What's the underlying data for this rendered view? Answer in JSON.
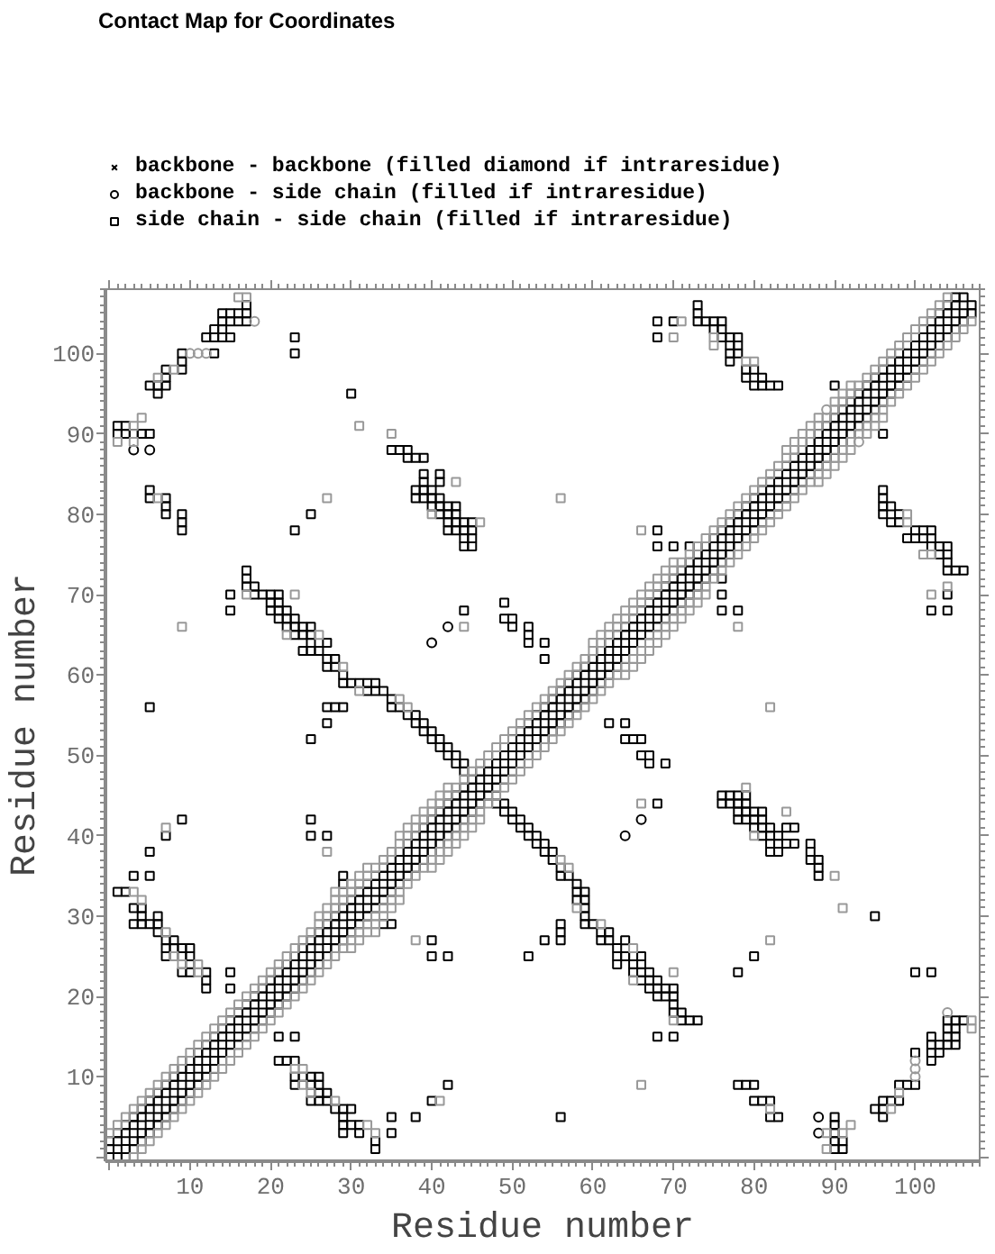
{
  "chart_data": {
    "type": "scatter",
    "title": "Contact Map for Coordinates",
    "xlabel": "Residue number",
    "ylabel": "Residue number",
    "xlim": [
      -0.5,
      108
    ],
    "ylim": [
      -0.5,
      108
    ],
    "xticks": [
      {
        "value": 0,
        "label": null
      },
      10,
      20,
      30,
      40,
      50,
      60,
      70,
      80,
      90,
      100
    ],
    "yticks": [
      {
        "value": 0,
        "label": null
      },
      10,
      20,
      30,
      40,
      50,
      60,
      70,
      80,
      90,
      100
    ],
    "legend": "top",
    "series": [
      {
        "name": "backbone - backbone (filled diamond if intraresidue)",
        "color": "#000000",
        "marker": "cross"
      },
      {
        "name": "backbone - side chain (filled if intraresidue)",
        "color": "#000000",
        "marker": "circle",
        "x": [
          3,
          5,
          42,
          40,
          88,
          88,
          66,
          64
        ],
        "values": [
          88,
          88,
          66,
          64,
          3,
          5,
          42,
          40
        ]
      },
      {
        "name": "side chain - side chain (filled if intraresidue)",
        "color": "#000000",
        "marker": "square",
        "x": [
          0,
          1,
          2,
          3,
          4,
          5,
          6,
          7,
          8,
          9,
          10,
          11,
          12,
          13,
          14,
          15,
          16,
          17,
          18,
          19,
          20,
          21,
          22,
          23,
          24,
          25,
          26,
          27,
          28,
          29,
          30,
          31,
          32,
          33,
          34,
          35,
          36,
          37,
          38,
          39,
          40,
          41,
          42,
          43,
          44,
          45,
          46,
          47,
          48,
          49,
          50,
          51,
          52,
          53,
          54,
          55,
          56,
          57,
          58,
          59,
          60,
          61,
          62,
          63,
          64,
          65,
          66,
          67,
          68,
          69,
          70,
          71,
          72,
          73,
          74,
          75,
          76,
          77,
          78,
          79,
          80,
          81,
          82,
          83,
          84,
          85,
          86,
          87,
          88,
          89,
          90,
          91,
          92,
          93,
          94,
          95,
          96,
          97,
          98,
          99,
          100,
          101,
          102,
          103,
          104,
          105,
          106,
          1,
          2,
          3,
          4,
          5,
          6,
          7,
          8,
          9,
          10,
          11,
          12,
          13,
          14,
          15,
          16,
          17,
          18,
          19,
          20,
          21,
          22,
          23,
          24,
          25,
          26,
          27,
          28,
          29,
          30,
          31,
          32,
          33,
          34,
          35,
          36,
          37,
          38,
          39,
          40,
          41,
          42,
          43,
          44,
          45,
          46,
          47,
          48,
          49,
          50,
          51,
          52,
          53,
          54,
          55,
          56,
          57,
          58,
          59,
          60,
          61,
          62,
          63,
          64,
          65,
          66,
          67,
          68,
          69,
          70,
          71,
          72,
          73,
          74,
          75,
          76,
          77,
          78,
          79,
          80,
          81,
          82,
          83,
          84,
          85,
          86,
          87,
          88,
          89,
          90,
          91,
          92,
          93,
          94,
          95,
          96,
          97,
          98,
          99,
          100,
          101,
          102,
          103,
          104,
          105,
          106,
          107,
          0,
          1,
          2,
          3,
          4,
          5,
          6,
          7,
          8,
          9,
          10,
          11,
          12,
          13,
          14,
          15,
          16,
          17,
          18,
          19,
          20,
          21,
          22,
          23,
          24,
          25,
          26,
          27,
          28,
          29,
          30,
          31,
          32,
          33,
          34,
          35,
          36,
          37,
          38,
          39,
          40,
          41,
          42,
          43,
          44,
          45,
          46,
          47,
          48,
          49,
          50,
          51,
          52,
          53,
          54,
          55,
          56,
          57,
          58,
          59,
          60,
          61,
          62,
          63,
          64,
          65,
          66,
          67,
          68,
          69,
          70,
          71,
          72,
          73,
          74,
          75,
          76,
          77,
          78,
          79,
          80,
          81,
          82,
          83,
          84,
          85,
          86,
          87,
          88,
          89,
          90,
          91,
          92,
          93,
          94,
          95,
          96,
          97,
          98,
          99,
          100,
          101,
          102,
          103,
          104,
          105,
          2,
          3,
          4,
          5,
          6,
          7,
          8,
          9,
          10,
          11,
          12,
          13,
          14,
          15,
          16,
          17,
          18,
          19,
          20,
          21,
          22,
          23,
          24,
          25,
          26,
          27,
          28,
          29,
          30,
          31,
          32,
          33,
          34,
          35,
          36,
          37,
          38,
          39,
          40,
          41,
          42,
          43,
          44,
          45,
          46,
          47,
          48,
          49,
          50,
          51,
          52,
          53,
          54,
          55,
          56,
          57,
          58,
          59,
          60,
          61,
          62,
          63,
          64,
          65,
          66,
          67,
          68,
          69,
          70,
          71,
          72,
          73,
          74,
          75,
          76,
          77,
          78,
          79,
          80,
          81,
          82,
          83,
          84,
          85,
          86,
          87,
          88,
          89,
          90,
          91,
          92,
          93,
          94,
          95,
          96,
          97,
          98,
          99,
          100,
          101,
          102,
          103,
          104,
          105,
          106,
          107,
          1,
          2,
          3,
          5,
          3,
          4,
          4,
          6,
          3,
          4,
          5,
          6,
          6,
          7,
          8,
          7,
          8,
          9,
          10,
          7,
          9,
          10,
          10,
          9,
          10,
          12,
          12,
          12,
          15,
          15,
          5,
          7,
          9,
          25,
          25,
          27,
          25,
          27,
          27,
          28,
          29,
          29,
          29,
          5,
          15,
          15,
          17,
          17,
          17,
          18,
          18,
          19,
          20,
          21,
          20,
          21,
          20,
          21,
          22,
          21,
          22,
          23,
          22,
          23,
          24,
          25,
          23,
          24,
          25,
          25,
          27,
          24,
          25,
          26,
          27,
          28,
          27,
          28,
          29,
          29,
          30,
          31,
          32,
          33,
          32,
          33,
          34,
          35,
          35,
          36,
          37,
          38,
          38,
          39,
          39,
          40,
          40,
          41,
          41,
          42,
          42,
          43,
          43,
          44,
          44,
          35,
          36,
          37,
          37,
          38,
          39,
          39,
          39,
          41,
          41,
          38,
          39,
          40,
          38,
          39,
          40,
          41,
          40,
          41,
          42,
          43,
          41,
          42,
          43,
          42,
          43,
          44,
          45,
          42,
          43,
          44,
          45,
          44,
          45,
          44,
          45,
          1,
          2,
          1,
          2,
          3,
          4,
          5,
          5,
          5,
          7,
          7,
          7,
          9,
          9,
          9,
          6,
          5,
          6,
          7,
          7,
          7,
          9,
          9,
          9,
          13,
          12,
          13,
          14,
          15,
          13,
          14,
          14,
          15,
          16,
          17,
          14,
          15,
          16,
          17,
          17,
          23,
          23,
          30,
          25,
          23,
          73,
          73,
          73,
          74,
          75,
          76,
          75,
          76,
          76,
          77,
          78,
          77,
          78,
          77,
          78,
          77,
          79,
          80,
          79,
          81,
          80,
          81,
          82,
          83,
          68,
          70,
          68,
          68,
          68,
          70,
          72,
          90,
          52,
          52,
          52,
          54,
          54,
          49,
          50,
          49,
          50,
          44,
          33,
          33,
          35,
          35,
          31,
          31,
          30,
          30,
          29,
          29,
          29,
          29,
          28,
          27,
          27,
          26,
          26,
          26,
          26,
          25,
          25,
          25,
          24,
          23,
          23,
          23,
          22,
          21,
          23,
          21,
          38,
          40,
          42,
          42,
          40,
          40,
          52,
          54,
          56,
          56,
          56,
          34,
          35,
          56,
          70,
          68,
          73,
          72,
          71,
          71,
          70,
          70,
          70,
          70,
          69,
          69,
          68,
          68,
          68,
          67,
          67,
          67,
          66,
          66,
          66,
          66,
          65,
          65,
          65,
          64,
          64,
          63,
          63,
          63,
          62,
          62,
          61,
          61,
          60,
          59,
          59,
          59,
          59,
          59,
          58,
          58,
          58,
          57,
          56,
          56,
          55,
          55,
          54,
          54,
          53,
          53,
          52,
          52,
          51,
          51,
          50,
          50,
          49,
          49,
          48,
          88,
          88,
          88,
          87,
          87,
          87,
          85,
          84,
          85,
          84,
          83,
          83,
          83,
          82,
          82,
          82,
          82,
          81,
          81,
          81,
          81,
          80,
          80,
          80,
          79,
          79,
          79,
          79,
          78,
          78,
          78,
          78,
          77,
          77,
          76,
          76,
          91,
          91,
          90,
          90,
          90,
          90,
          90,
          83,
          82,
          82,
          81,
          80,
          80,
          79,
          78,
          95,
          96,
          96,
          96,
          97,
          98,
          98,
          99,
          100,
          100,
          102,
          102,
          102,
          102,
          103,
          103,
          104,
          104,
          104,
          104,
          105,
          105,
          105,
          105,
          106,
          102,
          100,
          95,
          80,
          78,
          106,
          105,
          104,
          104,
          104,
          104,
          103,
          103,
          102,
          102,
          102,
          101,
          101,
          100,
          100,
          99,
          98,
          98,
          97,
          97,
          96,
          96,
          96,
          96,
          104,
          104,
          102,
          78,
          76,
          76,
          76,
          96,
          66,
          65,
          64,
          64,
          62,
          67,
          67,
          69,
          66,
          68
        ],
        "values": [
          1,
          2,
          3,
          4,
          5,
          6,
          7,
          8,
          9,
          10,
          11,
          12,
          13,
          14,
          15,
          16,
          17,
          18,
          19,
          20,
          21,
          22,
          23,
          24,
          25,
          26,
          27,
          28,
          29,
          30,
          31,
          32,
          33,
          34,
          35,
          36,
          37,
          38,
          39,
          40,
          41,
          42,
          43,
          44,
          45,
          46,
          47,
          48,
          49,
          50,
          51,
          52,
          53,
          54,
          55,
          56,
          57,
          58,
          59,
          60,
          61,
          62,
          63,
          64,
          65,
          66,
          67,
          68,
          69,
          70,
          71,
          72,
          73,
          74,
          75,
          76,
          77,
          78,
          79,
          80,
          81,
          82,
          83,
          84,
          85,
          86,
          87,
          88,
          89,
          90,
          91,
          92,
          93,
          94,
          95,
          96,
          97,
          98,
          99,
          100,
          101,
          102,
          103,
          104,
          105,
          106,
          107,
          0,
          1,
          2,
          3,
          4,
          5,
          6,
          7,
          8,
          9,
          10,
          11,
          12,
          13,
          14,
          15,
          16,
          17,
          18,
          19,
          20,
          21,
          22,
          23,
          24,
          25,
          26,
          27,
          28,
          29,
          30,
          31,
          32,
          33,
          34,
          35,
          36,
          37,
          38,
          39,
          40,
          41,
          42,
          43,
          44,
          45,
          46,
          47,
          48,
          49,
          50,
          51,
          52,
          53,
          54,
          55,
          56,
          57,
          58,
          59,
          60,
          61,
          62,
          63,
          64,
          65,
          66,
          67,
          68,
          69,
          70,
          71,
          72,
          73,
          74,
          75,
          76,
          77,
          78,
          79,
          80,
          81,
          82,
          83,
          84,
          85,
          86,
          87,
          88,
          89,
          90,
          91,
          92,
          93,
          94,
          95,
          96,
          97,
          98,
          99,
          100,
          101,
          102,
          103,
          104,
          105,
          106,
          2,
          3,
          4,
          5,
          6,
          7,
          8,
          9,
          10,
          11,
          12,
          13,
          14,
          15,
          16,
          17,
          18,
          19,
          20,
          21,
          22,
          23,
          24,
          25,
          26,
          27,
          28,
          29,
          30,
          31,
          32,
          33,
          34,
          35,
          36,
          37,
          38,
          39,
          40,
          41,
          42,
          43,
          44,
          45,
          46,
          47,
          48,
          49,
          50,
          51,
          52,
          53,
          54,
          55,
          56,
          57,
          58,
          59,
          60,
          61,
          62,
          63,
          64,
          65,
          66,
          67,
          68,
          69,
          70,
          71,
          72,
          73,
          74,
          75,
          76,
          77,
          78,
          79,
          80,
          81,
          82,
          83,
          84,
          85,
          86,
          87,
          88,
          89,
          90,
          91,
          92,
          93,
          94,
          95,
          96,
          97,
          98,
          99,
          100,
          101,
          102,
          103,
          104,
          105,
          106,
          107,
          0,
          1,
          2,
          3,
          4,
          5,
          6,
          7,
          8,
          9,
          10,
          11,
          12,
          13,
          14,
          15,
          16,
          17,
          18,
          19,
          20,
          21,
          22,
          23,
          24,
          25,
          26,
          27,
          28,
          29,
          30,
          31,
          32,
          33,
          34,
          35,
          36,
          37,
          38,
          39,
          40,
          41,
          42,
          43,
          44,
          45,
          46,
          47,
          48,
          49,
          50,
          51,
          52,
          53,
          54,
          55,
          56,
          57,
          58,
          59,
          60,
          61,
          62,
          63,
          64,
          65,
          66,
          67,
          68,
          69,
          70,
          71,
          72,
          73,
          74,
          75,
          76,
          77,
          78,
          79,
          80,
          81,
          82,
          83,
          84,
          85,
          86,
          87,
          88,
          89,
          90,
          91,
          92,
          93,
          94,
          95,
          96,
          97,
          98,
          99,
          100,
          101,
          102,
          103,
          104,
          105,
          33,
          33,
          35,
          35,
          31,
          31,
          30,
          30,
          29,
          29,
          29,
          29,
          28,
          27,
          27,
          26,
          26,
          26,
          26,
          25,
          25,
          25,
          24,
          23,
          23,
          23,
          22,
          21,
          23,
          21,
          38,
          40,
          42,
          42,
          40,
          40,
          52,
          54,
          56,
          56,
          56,
          34,
          35,
          56,
          70,
          68,
          73,
          72,
          71,
          71,
          70,
          70,
          70,
          70,
          69,
          69,
          68,
          68,
          68,
          67,
          67,
          67,
          66,
          66,
          66,
          66,
          65,
          65,
          65,
          64,
          64,
          63,
          63,
          63,
          62,
          62,
          61,
          61,
          60,
          59,
          59,
          59,
          59,
          59,
          58,
          58,
          58,
          57,
          56,
          56,
          55,
          55,
          54,
          54,
          53,
          53,
          52,
          52,
          51,
          51,
          50,
          50,
          49,
          49,
          48,
          88,
          88,
          88,
          87,
          87,
          87,
          85,
          84,
          85,
          84,
          83,
          83,
          83,
          82,
          82,
          82,
          82,
          81,
          81,
          81,
          81,
          80,
          80,
          80,
          79,
          79,
          79,
          79,
          78,
          78,
          78,
          78,
          77,
          77,
          76,
          76,
          91,
          91,
          90,
          90,
          90,
          90,
          90,
          83,
          82,
          82,
          81,
          80,
          80,
          79,
          78,
          95,
          96,
          96,
          96,
          97,
          98,
          98,
          99,
          100,
          100,
          102,
          102,
          102,
          102,
          103,
          103,
          104,
          104,
          104,
          104,
          105,
          105,
          105,
          105,
          106,
          102,
          100,
          95,
          80,
          78,
          106,
          105,
          104,
          104,
          104,
          104,
          103,
          103,
          102,
          102,
          102,
          101,
          101,
          100,
          100,
          99,
          98,
          98,
          97,
          97,
          96,
          96,
          96,
          96,
          104,
          104,
          102,
          78,
          76,
          76,
          76,
          96,
          66,
          65,
          64,
          64,
          62,
          67,
          67,
          69,
          66,
          68,
          1,
          2,
          3,
          5,
          3,
          4,
          4,
          6,
          3,
          4,
          5,
          6,
          6,
          7,
          8,
          7,
          8,
          9,
          10,
          7,
          9,
          10,
          10,
          9,
          10,
          12,
          12,
          12,
          15,
          15,
          5,
          7,
          9,
          25,
          25,
          27,
          25,
          27,
          27,
          28,
          29,
          29,
          29,
          5,
          15,
          15,
          17,
          17,
          17,
          18,
          18,
          19,
          20,
          21,
          20,
          21,
          20,
          21,
          22,
          21,
          22,
          23,
          22,
          23,
          24,
          25,
          23,
          24,
          25,
          25,
          27,
          24,
          25,
          26,
          27,
          28,
          27,
          28,
          29,
          29,
          30,
          31,
          32,
          33,
          32,
          33,
          34,
          35,
          35,
          36,
          37,
          38,
          38,
          39,
          39,
          40,
          40,
          41,
          41,
          42,
          42,
          43,
          43,
          44,
          44,
          35,
          36,
          37,
          37,
          38,
          39,
          39,
          39,
          41,
          41,
          38,
          39,
          40,
          38,
          39,
          40,
          41,
          40,
          41,
          42,
          43,
          41,
          42,
          43,
          42,
          43,
          44,
          45,
          42,
          43,
          44,
          45,
          44,
          45,
          44,
          45,
          1,
          2,
          1,
          2,
          3,
          4,
          5,
          5,
          5,
          7,
          7,
          7,
          9,
          9,
          9,
          6,
          5,
          6,
          7,
          7,
          7,
          9,
          9,
          9,
          13,
          12,
          13,
          14,
          15,
          13,
          14,
          14,
          15,
          16,
          17,
          14,
          15,
          16,
          17,
          17,
          23,
          23,
          30,
          25,
          23,
          73,
          73,
          73,
          74,
          75,
          76,
          75,
          76,
          76,
          77,
          78,
          77,
          78,
          77,
          78,
          77,
          79,
          80,
          79,
          81,
          80,
          81,
          82,
          83,
          68,
          70,
          68,
          68,
          68,
          70,
          72,
          90,
          52,
          52,
          52,
          54,
          54,
          49,
          50,
          49,
          50,
          44
        ]
      },
      {
        "color": "#999999",
        "marker": "square",
        "x": [
          0,
          1,
          2,
          3,
          4,
          5,
          6,
          7,
          8,
          9,
          10,
          11,
          12,
          13,
          14,
          15,
          16,
          17,
          18,
          19,
          20,
          21,
          22,
          23,
          24,
          25,
          26,
          27,
          28,
          29,
          30,
          31,
          32,
          33,
          34,
          35,
          36,
          37,
          38,
          39,
          40,
          41,
          42,
          43,
          44,
          45,
          46,
          47,
          48,
          49,
          50,
          51,
          52,
          53,
          54,
          55,
          56,
          57,
          58,
          59,
          60,
          61,
          62,
          63,
          64,
          65,
          66,
          67,
          68,
          69,
          70,
          71,
          72,
          73,
          74,
          75,
          76,
          77,
          78,
          79,
          80,
          81,
          82,
          83,
          84,
          85,
          86,
          87,
          88,
          89,
          90,
          91,
          92,
          93,
          94,
          95,
          96,
          97,
          98,
          99,
          100,
          101,
          102,
          103,
          104,
          3,
          4,
          5,
          6,
          7,
          8,
          9,
          10,
          11,
          12,
          13,
          14,
          15,
          16,
          17,
          18,
          19,
          20,
          21,
          22,
          23,
          24,
          25,
          26,
          27,
          28,
          29,
          30,
          31,
          32,
          33,
          34,
          35,
          36,
          37,
          38,
          39,
          40,
          41,
          42,
          43,
          44,
          45,
          46,
          47,
          48,
          49,
          50,
          51,
          52,
          53,
          54,
          55,
          56,
          57,
          58,
          59,
          60,
          61,
          62,
          63,
          64,
          65,
          66,
          67,
          68,
          69,
          70,
          71,
          72,
          73,
          74,
          75,
          76,
          77,
          78,
          79,
          80,
          81,
          82,
          83,
          84,
          85,
          86,
          87,
          88,
          89,
          90,
          91,
          92,
          93,
          94,
          95,
          96,
          97,
          98,
          99,
          100,
          101,
          102,
          103,
          104,
          105,
          106,
          107,
          26,
          27,
          28,
          29,
          30,
          31,
          32,
          36,
          37,
          38,
          39,
          40,
          41,
          42,
          60,
          61,
          62,
          63,
          64,
          65,
          66,
          67,
          68,
          69,
          70,
          84,
          85,
          86,
          87,
          88,
          90,
          91,
          92,
          30,
          31,
          32,
          33,
          34,
          35,
          36,
          40,
          41,
          42,
          43,
          44,
          45,
          46,
          64,
          65,
          66,
          67,
          68,
          69,
          70,
          71,
          72,
          73,
          74,
          88,
          89,
          90,
          91,
          92,
          94,
          95,
          96,
          3,
          4,
          7,
          8,
          9,
          11,
          11,
          7,
          27,
          17,
          23,
          22,
          26,
          29,
          31,
          36,
          37,
          35,
          43,
          40,
          46,
          1,
          3,
          4,
          3,
          6,
          8,
          6,
          16,
          17,
          31,
          27,
          9,
          71,
          70,
          75,
          75,
          79,
          80,
          66,
          56,
          44,
          28,
          33,
          32,
          28,
          25,
          24,
          23,
          24,
          41,
          38,
          70,
          70,
          65,
          65,
          61,
          58,
          57,
          56,
          90,
          84,
          80,
          79,
          89,
          91,
          92,
          89,
          97,
          98,
          82,
          107,
          107,
          91,
          82,
          66,
          104,
          102,
          102,
          101,
          99,
          99,
          78,
          82,
          66,
          33
        ],
        "values": [
          3,
          4,
          5,
          6,
          7,
          8,
          9,
          10,
          11,
          12,
          13,
          14,
          15,
          16,
          17,
          18,
          19,
          20,
          21,
          22,
          23,
          24,
          25,
          26,
          27,
          28,
          29,
          30,
          31,
          32,
          33,
          34,
          35,
          36,
          37,
          38,
          39,
          40,
          41,
          42,
          43,
          44,
          45,
          46,
          47,
          48,
          49,
          50,
          51,
          52,
          53,
          54,
          55,
          56,
          57,
          58,
          59,
          60,
          61,
          62,
          63,
          64,
          65,
          66,
          67,
          68,
          69,
          70,
          71,
          72,
          73,
          74,
          75,
          76,
          77,
          78,
          79,
          80,
          81,
          82,
          83,
          84,
          85,
          86,
          87,
          88,
          89,
          90,
          91,
          92,
          93,
          94,
          95,
          96,
          97,
          98,
          99,
          100,
          101,
          102,
          103,
          104,
          105,
          106,
          107,
          0,
          1,
          2,
          3,
          4,
          5,
          6,
          7,
          8,
          9,
          10,
          11,
          12,
          13,
          14,
          15,
          16,
          17,
          18,
          19,
          20,
          21,
          22,
          23,
          24,
          25,
          26,
          27,
          28,
          29,
          30,
          31,
          32,
          33,
          34,
          35,
          36,
          37,
          38,
          39,
          40,
          41,
          42,
          43,
          44,
          45,
          46,
          47,
          48,
          49,
          50,
          51,
          52,
          53,
          54,
          55,
          56,
          57,
          58,
          59,
          60,
          61,
          62,
          63,
          64,
          65,
          66,
          67,
          68,
          69,
          70,
          71,
          72,
          73,
          74,
          75,
          76,
          77,
          78,
          79,
          80,
          81,
          82,
          83,
          84,
          85,
          86,
          87,
          88,
          89,
          90,
          91,
          92,
          93,
          94,
          95,
          96,
          97,
          98,
          99,
          100,
          101,
          102,
          103,
          104,
          30,
          31,
          32,
          33,
          34,
          35,
          36,
          40,
          41,
          42,
          43,
          44,
          45,
          46,
          64,
          65,
          66,
          67,
          68,
          69,
          70,
          71,
          72,
          73,
          74,
          88,
          89,
          90,
          91,
          92,
          94,
          95,
          96,
          26,
          27,
          28,
          29,
          30,
          31,
          32,
          36,
          37,
          38,
          39,
          40,
          41,
          42,
          60,
          61,
          62,
          63,
          64,
          65,
          66,
          67,
          68,
          69,
          70,
          84,
          85,
          86,
          87,
          88,
          90,
          91,
          92,
          33,
          32,
          28,
          25,
          24,
          23,
          24,
          41,
          38,
          70,
          70,
          65,
          65,
          61,
          58,
          57,
          56,
          90,
          84,
          80,
          79,
          89,
          91,
          92,
          89,
          97,
          98,
          82,
          107,
          107,
          91,
          82,
          66,
          104,
          102,
          102,
          101,
          99,
          99,
          78,
          82,
          66,
          33,
          3,
          4,
          7,
          8,
          9,
          11,
          11,
          7,
          27,
          17,
          23,
          22,
          26,
          29,
          31,
          36,
          37,
          35,
          43,
          40,
          46,
          1,
          3,
          4,
          3,
          6,
          8,
          6,
          16,
          17,
          31,
          27,
          9,
          71,
          70,
          75,
          75,
          79,
          80,
          66,
          56,
          44,
          28
        ]
      },
      {
        "color": "#999999",
        "marker": "circle",
        "x": [
          10,
          11,
          12,
          18,
          89,
          100,
          100,
          100,
          104,
          93
        ],
        "values": [
          100,
          100,
          100,
          104,
          93,
          10,
          11,
          12,
          18,
          89
        ]
      }
    ]
  }
}
